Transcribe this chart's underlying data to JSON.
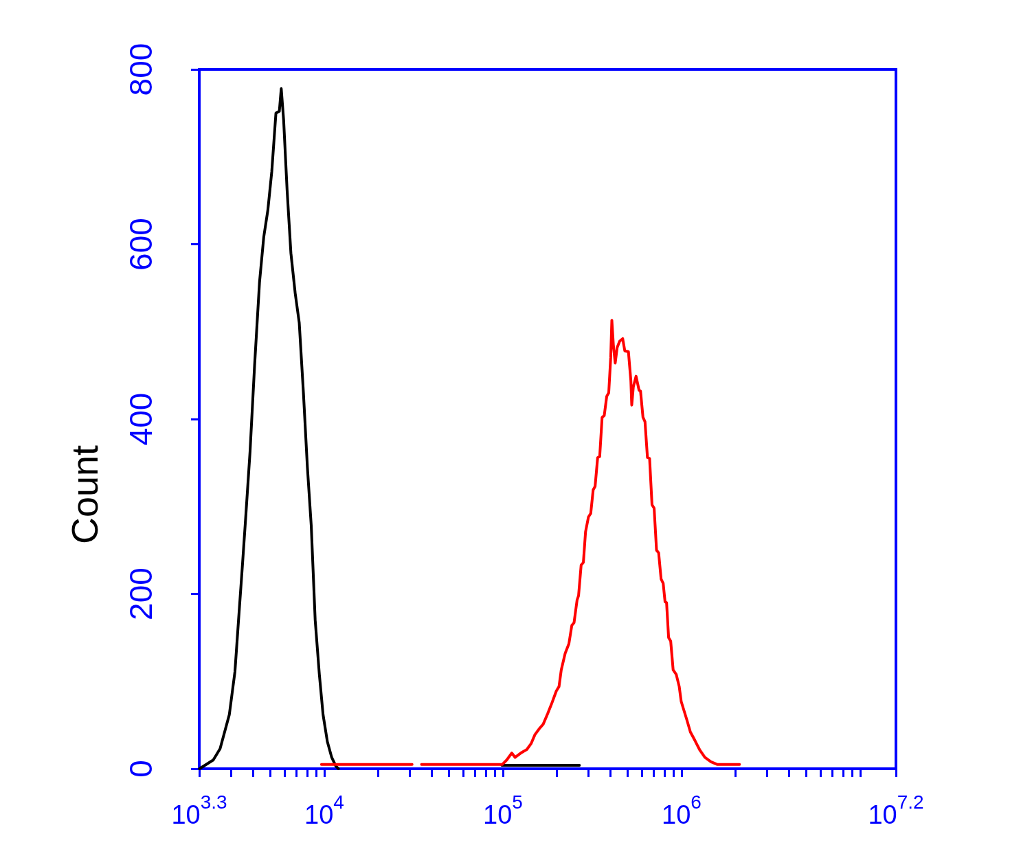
{
  "chart_data": {
    "type": "line",
    "ylabel": "Count",
    "log": "x",
    "marker": "none",
    "xlim": [
      1995,
      15850000
    ],
    "xticks": [
      {
        "value": 1995,
        "label": "10$^{3.3}$"
      },
      {
        "value": 3000,
        "label": null
      },
      {
        "value": 4000,
        "label": null
      },
      {
        "value": 5000,
        "label": null
      },
      {
        "value": 6000,
        "label": null
      },
      {
        "value": 7000,
        "label": null
      },
      {
        "value": 8000,
        "label": null
      },
      {
        "value": 9000,
        "label": null
      },
      {
        "value": 10000,
        "label": "10$^{4}$"
      },
      {
        "value": 20000,
        "label": null
      },
      {
        "value": 30000,
        "label": null
      },
      {
        "value": 40000,
        "label": null
      },
      {
        "value": 50000,
        "label": null
      },
      {
        "value": 60000,
        "label": null
      },
      {
        "value": 70000,
        "label": null
      },
      {
        "value": 80000,
        "label": null
      },
      {
        "value": 90000,
        "label": null
      },
      {
        "value": 100000,
        "label": "10$^{5}$"
      },
      {
        "value": 200000,
        "label": null
      },
      {
        "value": 300000,
        "label": null
      },
      {
        "value": 400000,
        "label": null
      },
      {
        "value": 500000,
        "label": null
      },
      {
        "value": 600000,
        "label": null
      },
      {
        "value": 700000,
        "label": null
      },
      {
        "value": 800000,
        "label": null
      },
      {
        "value": 900000,
        "label": null
      },
      {
        "value": 1000000,
        "label": "10$^{6}$"
      },
      {
        "value": 2000000,
        "label": null
      },
      {
        "value": 3000000,
        "label": null
      },
      {
        "value": 4000000,
        "label": null
      },
      {
        "value": 5000000,
        "label": null
      },
      {
        "value": 6000000,
        "label": null
      },
      {
        "value": 7000000,
        "label": null
      },
      {
        "value": 8000000,
        "label": null
      },
      {
        "value": 9000000,
        "label": null
      },
      {
        "value": 10000000,
        "label": null
      },
      {
        "value": 15850000,
        "label": "10$^{7.2}$"
      }
    ],
    "ylim": [
      0,
      800
    ],
    "yticks": [
      0,
      200,
      400,
      600,
      800
    ],
    "series": [
      {
        "color": "#000000",
        "x": [
          2000,
          2390,
          2610,
          2800,
          2940,
          3160,
          3310,
          3470,
          3640,
          3840,
          4070,
          4340,
          4580,
          4830,
          5080,
          5360,
          5600,
          5740,
          5920,
          6190,
          6500,
          6870,
          7240,
          7640,
          8040,
          8450,
          8890,
          9380,
          9840,
          10400,
          11000,
          11600,
          12000,
          30000,
          98600,
          268000
        ],
        "values": [
          0,
          10,
          23,
          46,
          62,
          111,
          170,
          229,
          291,
          363,
          461,
          557,
          608,
          639,
          683,
          750,
          752,
          778,
          742,
          662,
          590,
          544,
          510,
          430,
          345,
          278,
          170,
          108,
          62,
          31,
          13,
          3,
          0,
          null,
          4,
          4
        ]
      },
      {
        "color": "#ff0000",
        "x": [
          9640,
          31000,
          33000,
          35000,
          99300,
          105000,
          112000,
          117000,
          126000,
          136000,
          144000,
          151000,
          160000,
          168000,
          178000,
          187000,
          199000,
          206000,
          212000,
          223000,
          234000,
          243000,
          250000,
          260000,
          265000,
          274000,
          282000,
          290000,
          301000,
          310000,
          320000,
          328000,
          339000,
          348000,
          359000,
          369000,
          381000,
          391000,
          401000,
          407000,
          415000,
          425000,
          436000,
          450000,
          468000,
          481000,
          504000,
          520000,
          526000,
          537000,
          556000,
          578000,
          589000,
          608000,
          624000,
          644000,
          662000,
          683000,
          702000,
          724000,
          744000,
          768000,
          789000,
          808000,
          824000,
          846000,
          869000,
          897000,
          933000,
          970000,
          995000,
          1030000,
          1070000,
          1120000,
          1190000,
          1260000,
          1350000,
          1460000,
          1580000,
          2110000
        ],
        "values": [
          5,
          5,
          null,
          5,
          5,
          10,
          18,
          13,
          18,
          22,
          29,
          39,
          46,
          51,
          63,
          74,
          89,
          94,
          113,
          132,
          143,
          164,
          167,
          193,
          198,
          233,
          236,
          271,
          288,
          292,
          319,
          323,
          356,
          357,
          402,
          404,
          426,
          430,
          470,
          513,
          485,
          464,
          482,
          489,
          492,
          478,
          477,
          444,
          416,
          437,
          449,
          433,
          432,
          402,
          397,
          356,
          355,
          302,
          298,
          250,
          247,
          217,
          212,
          191,
          190,
          150,
          146,
          113,
          108,
          94,
          77,
          67,
          56,
          42,
          32,
          22,
          13,
          8,
          5,
          5
        ]
      }
    ]
  }
}
